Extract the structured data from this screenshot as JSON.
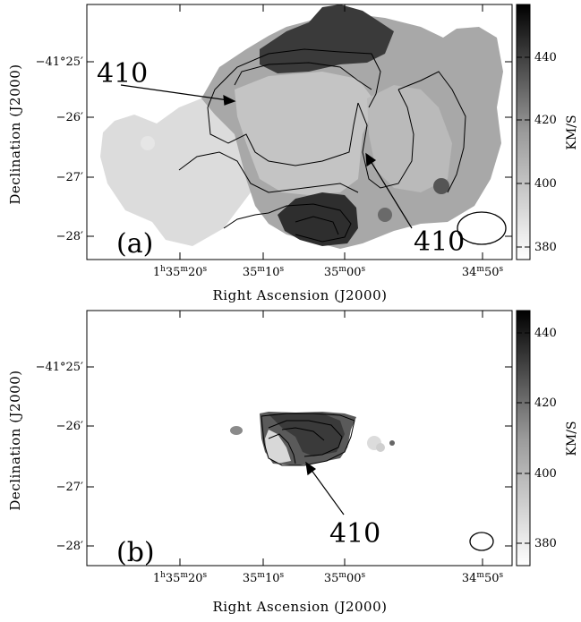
{
  "panels": [
    {
      "panel_label": "(a)",
      "ra_ticks": [
        {
          "h": "1",
          "hs": "h",
          "m": "35",
          "ms": "m",
          "s": "20",
          "ss": "s"
        },
        {
          "h": "",
          "hs": "",
          "m": "35",
          "ms": "m",
          "s": "10",
          "ss": "s"
        },
        {
          "h": "",
          "hs": "",
          "m": "35",
          "ms": "m",
          "s": "00",
          "ss": "s"
        },
        {
          "h": "",
          "hs": "",
          "m": "34",
          "ms": "m",
          "s": "50",
          "ss": "s"
        }
      ],
      "dec_ticks": [
        "−41°25′",
        "−26′",
        "−27′",
        "−28′"
      ],
      "xlabel": "Right Ascension (J2000)",
      "ylabel": "Declination (J2000)",
      "colorbar": {
        "label": "KM/S",
        "ticks": [
          "440",
          "420",
          "400",
          "380"
        ],
        "range": [
          375,
          458
        ]
      },
      "annotations": [
        "410",
        "410"
      ]
    },
    {
      "panel_label": "(b)",
      "ra_ticks": [
        {
          "h": "1",
          "hs": "h",
          "m": "35",
          "ms": "m",
          "s": "20",
          "ss": "s"
        },
        {
          "h": "",
          "hs": "",
          "m": "35",
          "ms": "m",
          "s": "10",
          "ss": "s"
        },
        {
          "h": "",
          "hs": "",
          "m": "35",
          "ms": "m",
          "s": "00",
          "ss": "s"
        },
        {
          "h": "",
          "hs": "",
          "m": "34",
          "ms": "m",
          "s": "50",
          "ss": "s"
        }
      ],
      "dec_ticks": [
        "−41°25′",
        "−26′",
        "−27′",
        "−28′"
      ],
      "xlabel": "Right Ascension (J2000)",
      "ylabel": "Declination (J2000)",
      "colorbar": {
        "label": "KM/S",
        "ticks": [
          "440",
          "420",
          "400",
          "380"
        ],
        "range": [
          373,
          448
        ]
      },
      "annotations": [
        "410"
      ]
    }
  ],
  "colors": {
    "frame": "#000000",
    "background": "#ffffff",
    "map_dark": "#1a1a1a",
    "map_light": "#e8e8e8"
  }
}
